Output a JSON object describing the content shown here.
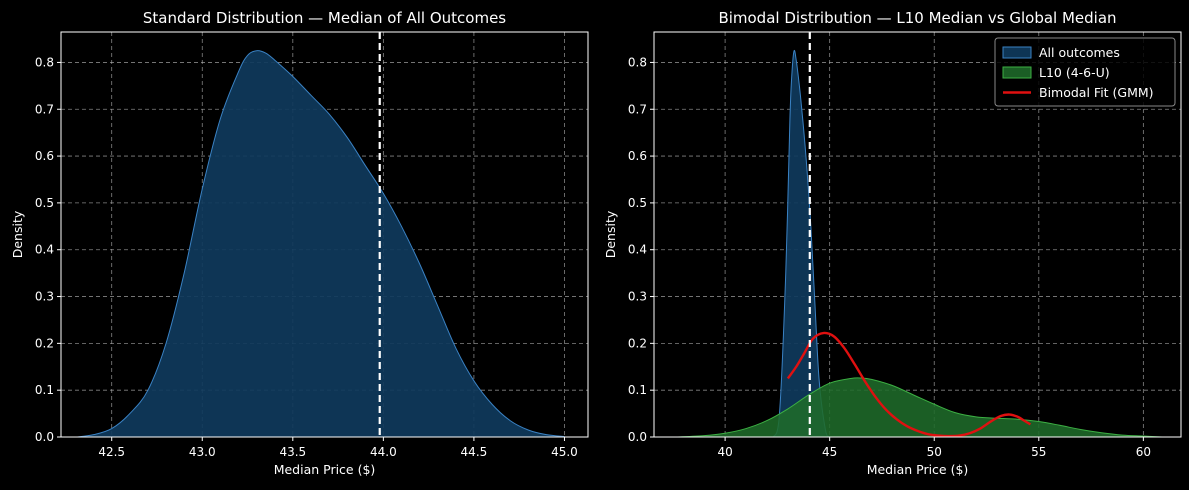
{
  "colors": {
    "background": "#000000",
    "axes_edge": "#ffffff",
    "grid": "#b0b0b0",
    "all_outcomes_fill": "#0f3a5c",
    "all_outcomes_line": "#3a82c4",
    "l10_fill": "#1f6b2a",
    "l10_line": "#3cb043",
    "gmm_line": "#e01010",
    "median_line": "#ffffff"
  },
  "chart_data": [
    {
      "type": "area",
      "title": "Standard Distribution — Median of All Outcomes",
      "xlabel": "Median Price ($)",
      "ylabel": "Density",
      "xlim": [
        42.22,
        45.13
      ],
      "ylim": [
        0,
        0.865
      ],
      "xticks": [
        42.5,
        43.0,
        43.5,
        44.0,
        44.5,
        45.0
      ],
      "xtick_labels": [
        "42.5",
        "43.0",
        "43.5",
        "44.0",
        "44.5",
        "45.0"
      ],
      "yticks": [
        0,
        0.1,
        0.2,
        0.3,
        0.4,
        0.5,
        0.6,
        0.7,
        0.8
      ],
      "ytick_labels": [
        "0.0",
        "0.1",
        "0.2",
        "0.3",
        "0.4",
        "0.5",
        "0.6",
        "0.7",
        "0.8"
      ],
      "grid": true,
      "series": [
        {
          "key": "all",
          "x": [
            42.31,
            42.4,
            42.5,
            42.6,
            42.7,
            42.8,
            42.9,
            43.0,
            43.1,
            43.2,
            43.25,
            43.3,
            43.35,
            43.4,
            43.5,
            43.6,
            43.7,
            43.8,
            43.9,
            44.0,
            44.1,
            44.2,
            44.3,
            44.4,
            44.5,
            44.6,
            44.7,
            44.8,
            44.9,
            45.0
          ],
          "y": [
            0.0,
            0.005,
            0.018,
            0.05,
            0.1,
            0.2,
            0.35,
            0.53,
            0.68,
            0.78,
            0.815,
            0.825,
            0.82,
            0.805,
            0.77,
            0.73,
            0.69,
            0.64,
            0.58,
            0.52,
            0.45,
            0.37,
            0.28,
            0.19,
            0.12,
            0.07,
            0.035,
            0.015,
            0.005,
            0.001
          ]
        }
      ],
      "vlines": [
        {
          "key": "median",
          "x": 43.98
        }
      ]
    },
    {
      "type": "area",
      "title": "Bimodal Distribution — L10 Median vs Global Median",
      "xlabel": "Median Price ($)",
      "ylabel": "Density",
      "xlim": [
        36.6,
        61.8
      ],
      "ylim": [
        0,
        0.865
      ],
      "xticks": [
        40,
        45,
        50,
        55,
        60
      ],
      "xtick_labels": [
        "40",
        "45",
        "50",
        "55",
        "60"
      ],
      "yticks": [
        0,
        0.1,
        0.2,
        0.3,
        0.4,
        0.5,
        0.6,
        0.7,
        0.8
      ],
      "ytick_labels": [
        "0.0",
        "0.1",
        "0.2",
        "0.3",
        "0.4",
        "0.5",
        "0.6",
        "0.7",
        "0.8"
      ],
      "grid": true,
      "legend_position": "top-right",
      "legend": [
        {
          "key": "all",
          "label": "All outcomes",
          "kind": "patch"
        },
        {
          "key": "l10",
          "label": "L10 (4-6-U)",
          "kind": "patch"
        },
        {
          "key": "gmm",
          "label": "Bimodal Fit (GMM)",
          "kind": "line"
        }
      ],
      "series": [
        {
          "key": "all",
          "name": "All outcomes",
          "x": [
            42.31,
            42.6,
            42.9,
            43.1,
            43.2,
            43.3,
            43.4,
            43.5,
            43.6,
            43.75,
            43.9,
            44.1,
            44.3,
            44.5,
            44.8,
            45.0
          ],
          "y": [
            0.0,
            0.05,
            0.35,
            0.68,
            0.78,
            0.825,
            0.805,
            0.77,
            0.73,
            0.66,
            0.58,
            0.45,
            0.28,
            0.12,
            0.015,
            0.001
          ]
        },
        {
          "key": "l10",
          "name": "L10 (4-6-U)",
          "x": [
            37.7,
            39.0,
            40.0,
            41.0,
            42.0,
            43.0,
            44.0,
            45.0,
            46.0,
            46.5,
            47.0,
            48.0,
            49.0,
            50.0,
            51.0,
            52.0,
            53.0,
            54.0,
            55.0,
            56.0,
            57.0,
            58.0,
            59.0,
            60.0,
            60.9
          ],
          "y": [
            0.0,
            0.003,
            0.008,
            0.018,
            0.035,
            0.06,
            0.09,
            0.115,
            0.125,
            0.126,
            0.123,
            0.11,
            0.09,
            0.07,
            0.052,
            0.043,
            0.04,
            0.038,
            0.033,
            0.025,
            0.016,
            0.009,
            0.004,
            0.002,
            0.0
          ]
        },
        {
          "key": "gmm",
          "name": "Bimodal Fit (GMM)",
          "x": [
            43.0,
            43.4,
            43.8,
            44.2,
            44.7,
            45.2,
            45.7,
            46.2,
            46.7,
            47.2,
            47.7,
            48.2,
            48.7,
            49.2,
            49.7,
            50.2,
            50.7,
            51.2,
            51.7,
            52.2,
            52.7,
            53.2,
            53.6,
            54.0,
            54.3,
            54.6
          ],
          "y": [
            0.125,
            0.15,
            0.18,
            0.21,
            0.222,
            0.215,
            0.19,
            0.155,
            0.118,
            0.085,
            0.058,
            0.038,
            0.023,
            0.013,
            0.006,
            0.003,
            0.002,
            0.003,
            0.008,
            0.018,
            0.033,
            0.045,
            0.048,
            0.043,
            0.035,
            0.027
          ]
        }
      ],
      "vlines": [
        {
          "key": "median",
          "x": 44.05
        }
      ]
    }
  ]
}
